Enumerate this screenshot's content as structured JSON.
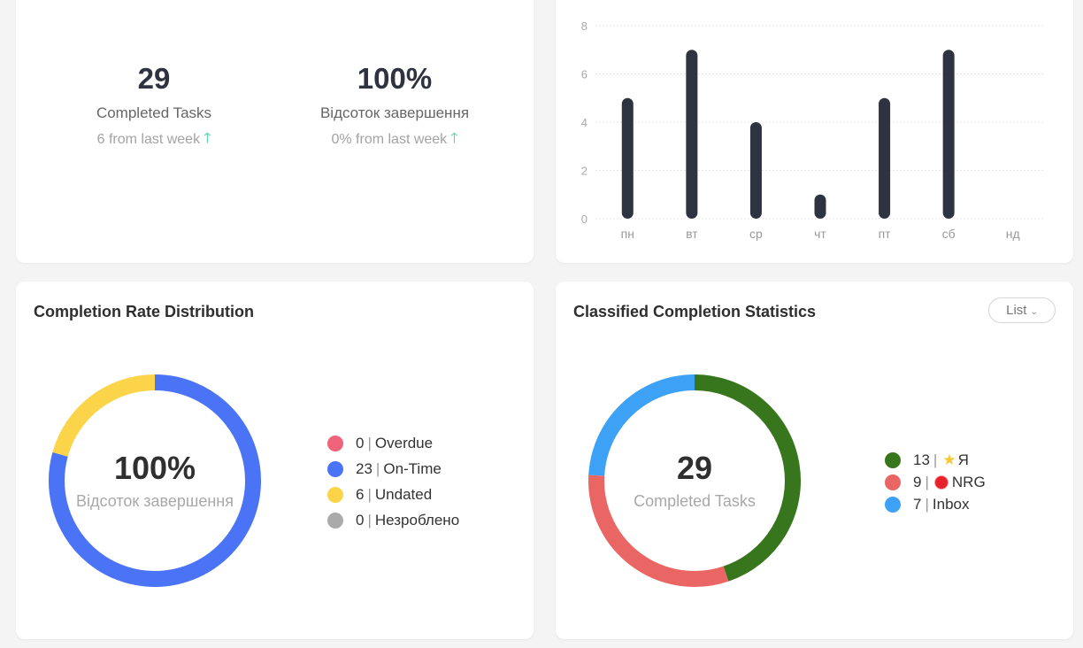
{
  "stats": [
    {
      "value": "29",
      "label": "Completed Tasks",
      "delta": "6 from last week"
    },
    {
      "value": "100%",
      "label": "Відсоток завершення",
      "delta": "0% from last week"
    }
  ],
  "bar_chart": {
    "chart_data": {
      "type": "bar",
      "categories": [
        "пн",
        "вт",
        "ср",
        "чт",
        "пт",
        "сб",
        "нд"
      ],
      "values": [
        5,
        7,
        4,
        1,
        5,
        7,
        0
      ],
      "yticks": [
        "0",
        "2",
        "4",
        "6",
        "8"
      ],
      "ylim": [
        0,
        8
      ],
      "bar_color": "#2d3340"
    }
  },
  "rate": {
    "title": "Completion Rate Distribution",
    "center_value": "100%",
    "center_label": "Відсоток завершення",
    "legend": [
      {
        "count": "0",
        "label": "Overdue",
        "color": "#f06378"
      },
      {
        "count": "23",
        "label": "On-Time",
        "color": "#4b73f5"
      },
      {
        "count": "6",
        "label": "Undated",
        "color": "#fbd449"
      },
      {
        "count": "0",
        "label": "Незроблено",
        "color": "#aaaaaa"
      }
    ],
    "chart_data": {
      "type": "pie",
      "categories": [
        "Overdue",
        "On-Time",
        "Undated",
        "Незроблено"
      ],
      "values": [
        0,
        23,
        6,
        0
      ],
      "colors": [
        "#f06378",
        "#4b73f5",
        "#fbd449",
        "#aaaaaa"
      ]
    }
  },
  "classified": {
    "title": "Classified Completion Statistics",
    "list_button": "List",
    "center_value": "29",
    "center_label": "Completed Tasks",
    "legend": [
      {
        "count": "13",
        "label": "Я",
        "icon": "star-icon",
        "color": "#38761d"
      },
      {
        "count": "9",
        "label": "NRG",
        "icon": "red-circle-icon",
        "color": "#ea6664"
      },
      {
        "count": "7",
        "label": "Inbox",
        "icon": "",
        "color": "#3da2f5"
      }
    ],
    "chart_data": {
      "type": "pie",
      "categories": [
        "Я",
        "NRG",
        "Inbox"
      ],
      "values": [
        13,
        9,
        7
      ],
      "colors": [
        "#38761d",
        "#ea6664",
        "#3da2f5"
      ]
    }
  }
}
